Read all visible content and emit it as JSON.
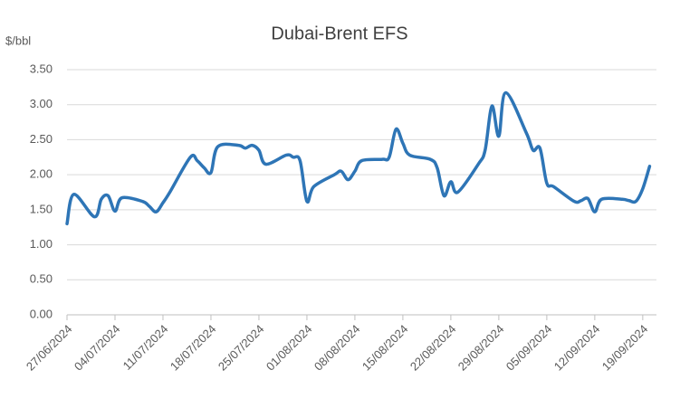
{
  "chart_data": {
    "type": "line",
    "title": "Dubai-Brent EFS",
    "y_label": "$/bbl",
    "x": [
      "27/06/2024",
      "28/06/2024",
      "01/07/2024",
      "02/07/2024",
      "03/07/2024",
      "04/07/2024",
      "05/07/2024",
      "08/07/2024",
      "09/07/2024",
      "10/07/2024",
      "11/07/2024",
      "12/07/2024",
      "15/07/2024",
      "16/07/2024",
      "17/07/2024",
      "18/07/2024",
      "19/07/2024",
      "22/07/2024",
      "23/07/2024",
      "24/07/2024",
      "25/07/2024",
      "26/07/2024",
      "29/07/2024",
      "30/07/2024",
      "31/07/2024",
      "01/08/2024",
      "02/08/2024",
      "05/08/2024",
      "06/08/2024",
      "07/08/2024",
      "08/08/2024",
      "09/08/2024",
      "12/08/2024",
      "13/08/2024",
      "14/08/2024",
      "15/08/2024",
      "16/08/2024",
      "19/08/2024",
      "20/08/2024",
      "21/08/2024",
      "22/08/2024",
      "23/08/2024",
      "26/08/2024",
      "27/08/2024",
      "28/08/2024",
      "29/08/2024",
      "30/08/2024",
      "02/09/2024",
      "03/09/2024",
      "04/09/2024",
      "05/09/2024",
      "06/09/2024",
      "09/09/2024",
      "10/09/2024",
      "11/09/2024",
      "12/09/2024",
      "13/09/2024",
      "16/09/2024",
      "17/09/2024",
      "18/09/2024",
      "19/09/2024",
      "20/09/2024"
    ],
    "series": [
      {
        "name": "Dubai-Brent EFS",
        "color": "#2e75b6",
        "values": [
          1.3,
          1.72,
          1.4,
          1.65,
          1.7,
          1.48,
          1.67,
          1.62,
          1.55,
          1.47,
          1.6,
          1.75,
          2.25,
          2.2,
          2.1,
          2.03,
          2.4,
          2.42,
          2.38,
          2.42,
          2.35,
          2.15,
          2.28,
          2.25,
          2.2,
          1.62,
          1.83,
          2.0,
          2.05,
          1.93,
          2.05,
          2.2,
          2.22,
          2.25,
          2.65,
          2.45,
          2.28,
          2.22,
          2.1,
          1.7,
          1.9,
          1.75,
          2.15,
          2.35,
          2.98,
          2.55,
          3.17,
          2.6,
          2.35,
          2.38,
          1.88,
          1.83,
          1.62,
          1.63,
          1.66,
          1.47,
          1.65,
          1.65,
          1.63,
          1.62,
          1.8,
          2.12
        ]
      }
    ],
    "xlim": [
      "27/06/2024",
      "21/09/2024"
    ],
    "xticks": [
      "27/06/2024",
      "04/07/2024",
      "11/07/2024",
      "18/07/2024",
      "25/07/2024",
      "01/08/2024",
      "08/08/2024",
      "15/08/2024",
      "22/08/2024",
      "29/08/2024",
      "05/09/2024",
      "12/09/2024",
      "19/09/2024"
    ],
    "ylim": [
      0,
      3.5
    ],
    "yticks": [
      {
        "value": 0,
        "label": "0.00"
      },
      {
        "value": 0.5,
        "label": "0.50"
      },
      {
        "value": 1,
        "label": "1.00"
      },
      {
        "value": 1.5,
        "label": "1.50"
      },
      {
        "value": 2,
        "label": "2.00"
      },
      {
        "value": 2.5,
        "label": "2.50"
      },
      {
        "value": 3,
        "label": "3.00"
      },
      {
        "value": 3.5,
        "label": "3.50"
      }
    ],
    "grid": true
  }
}
